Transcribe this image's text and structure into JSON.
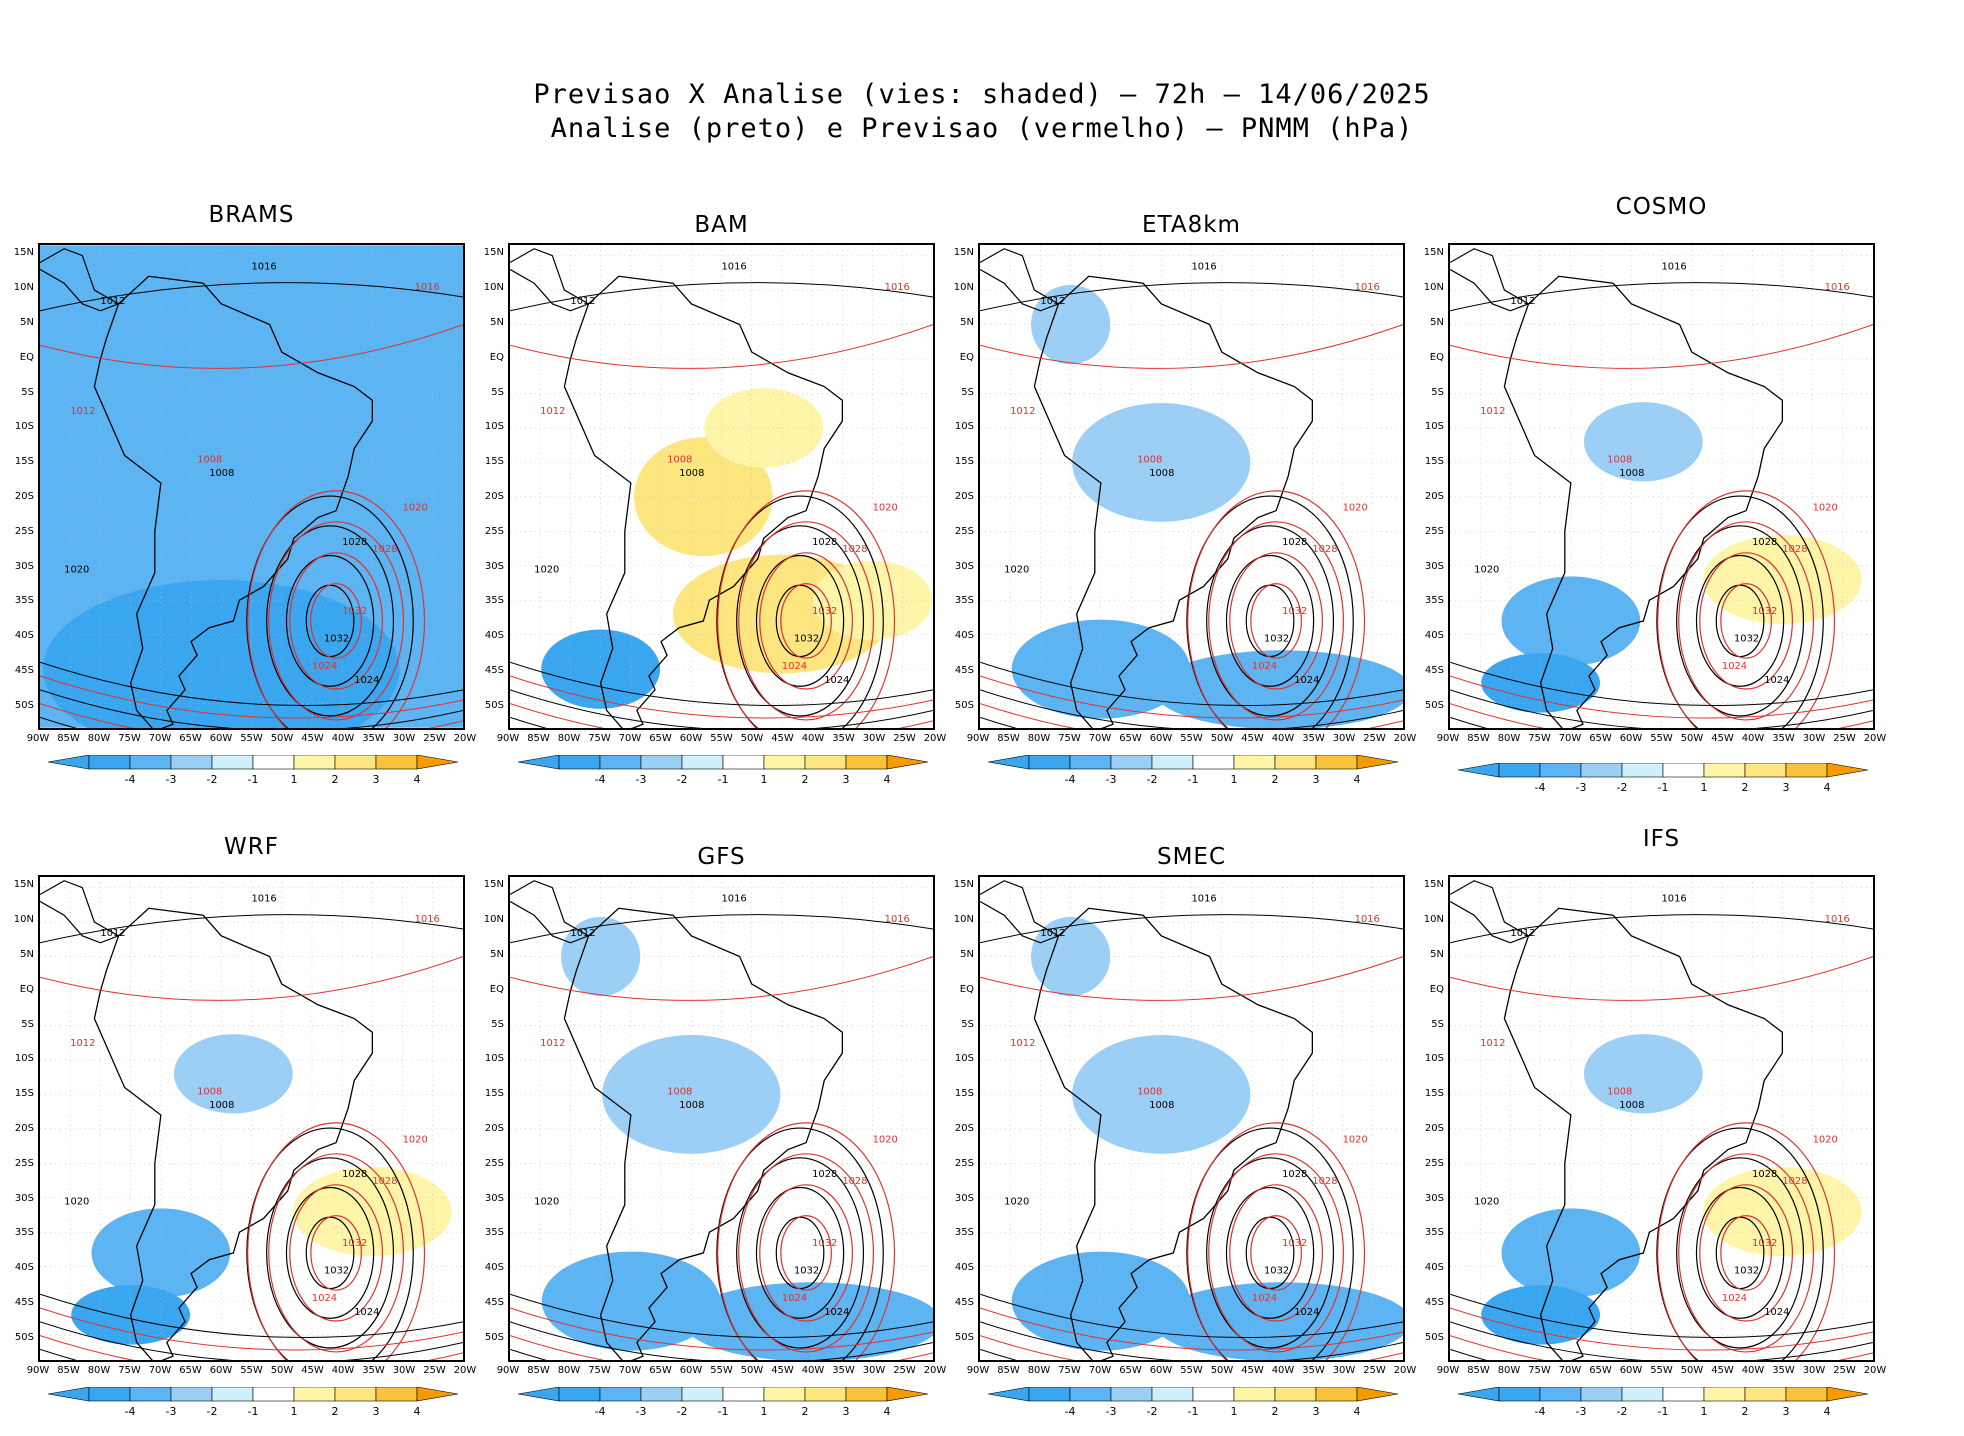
{
  "title": {
    "line1": "Previsao X Analise (vies: shaded) – 72h – 14/06/2025",
    "line2": "Analise (preto) e Previsao (vermelho) – PNMM (hPa)"
  },
  "panels": [
    {
      "name": "BRAMS",
      "bias": "cold"
    },
    {
      "name": "BAM",
      "bias": "warm"
    },
    {
      "name": "ETA8km",
      "bias": "mixed-cold"
    },
    {
      "name": "COSMO",
      "bias": "mixed"
    },
    {
      "name": "WRF",
      "bias": "mixed"
    },
    {
      "name": "GFS",
      "bias": "mixed-cold"
    },
    {
      "name": "SMEC",
      "bias": "mixed-cold"
    },
    {
      "name": "IFS",
      "bias": "mixed"
    }
  ],
  "axes": {
    "lat_labels": [
      "15N",
      "10N",
      "5N",
      "EQ",
      "5S",
      "10S",
      "15S",
      "20S",
      "25S",
      "30S",
      "35S",
      "40S",
      "45S",
      "50S"
    ],
    "lon_labels": [
      "90W",
      "85W",
      "80W",
      "75W",
      "70W",
      "65W",
      "60W",
      "55W",
      "50W",
      "45W",
      "40W",
      "35W",
      "30W",
      "25W",
      "20W"
    ]
  },
  "colorbar": {
    "labels": [
      "-4",
      "-3",
      "-2",
      "-1",
      "1",
      "2",
      "3",
      "4"
    ],
    "colors": [
      "#3aa6f0",
      "#5cb4f2",
      "#9ccff6",
      "#cdf0fb",
      "#ffffff",
      "#fff5a8",
      "#fde680",
      "#fac33c",
      "#f79a00"
    ]
  },
  "contour_labels": {
    "analysis": [
      "1012",
      "1016",
      "1020",
      "1024",
      "1028",
      "1032",
      "1008"
    ],
    "forecast": [
      "1012",
      "1016",
      "1020",
      "1024",
      "1028",
      "1032",
      "1008"
    ]
  },
  "colors": {
    "analysis": "#000000",
    "forecast": "#e03030"
  }
}
